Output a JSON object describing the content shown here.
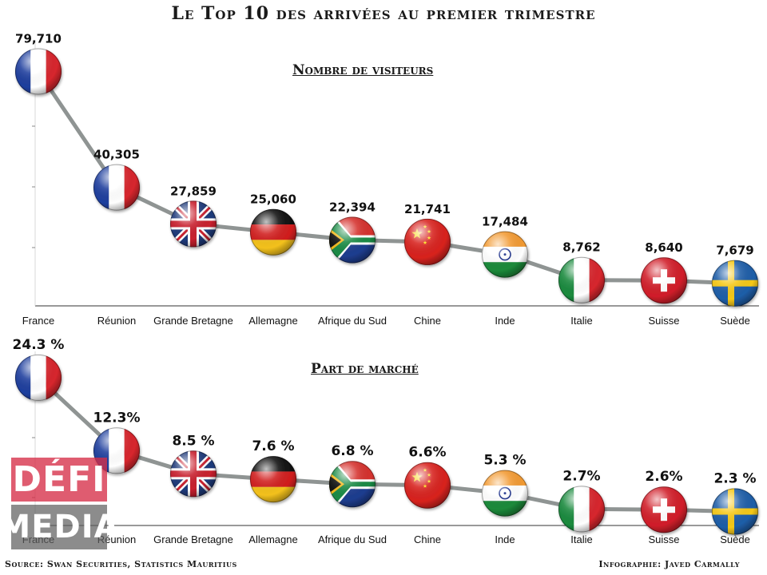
{
  "title": "Le Top 10 des arrivées au premier trimestre",
  "source": "Source: Swan Securities, Statistics Mauritius",
  "credit": "Infographie: Javed Carmally",
  "watermark": {
    "line1": "DÉFI",
    "line2": "MEDIA"
  },
  "colors": {
    "line": "#8f9493",
    "axis": "#333333"
  },
  "chart_data": [
    {
      "type": "line",
      "title": "Nombre de visiteurs",
      "categories": [
        "France",
        "Réunion",
        "Grande Bretagne",
        "Allemagne",
        "Afrique du Sud",
        "Chine",
        "Inde",
        "Italie",
        "Suisse",
        "Suède"
      ],
      "flags": [
        "france",
        "france",
        "uk",
        "germany",
        "south-africa",
        "china",
        "india",
        "italy",
        "switzerland",
        "sweden"
      ],
      "values": [
        79710,
        40305,
        27859,
        25060,
        22394,
        21741,
        17484,
        8762,
        8640,
        7679
      ],
      "labels": [
        "79,710",
        "40,305",
        "27,859",
        "25,060",
        "22,394",
        "21,741",
        "17,484",
        "8,762",
        "8,640",
        "7,679"
      ],
      "xlabel": "",
      "ylabel": "",
      "ylim": [
        0,
        85000
      ]
    },
    {
      "type": "line",
      "title": "Part de marché",
      "categories": [
        "France",
        "Réunion",
        "Grande Bretagne",
        "Allemagne",
        "Afrique du Sud",
        "Chine",
        "Inde",
        "Italie",
        "Suisse",
        "Suède"
      ],
      "flags": [
        "france",
        "france",
        "uk",
        "germany",
        "south-africa",
        "china",
        "india",
        "italy",
        "switzerland",
        "sweden"
      ],
      "values": [
        24.3,
        12.3,
        8.5,
        7.6,
        6.8,
        6.6,
        5.3,
        2.7,
        2.6,
        2.3
      ],
      "labels": [
        "24.3 %",
        "12.3%",
        "8.5 %",
        "7.6 %",
        "6.8 %",
        "6.6%",
        "5.3 %",
        "2.7%",
        "2.6%",
        "2.3 %"
      ],
      "xlabel": "",
      "ylabel": "",
      "ylim": [
        0,
        26
      ]
    }
  ]
}
